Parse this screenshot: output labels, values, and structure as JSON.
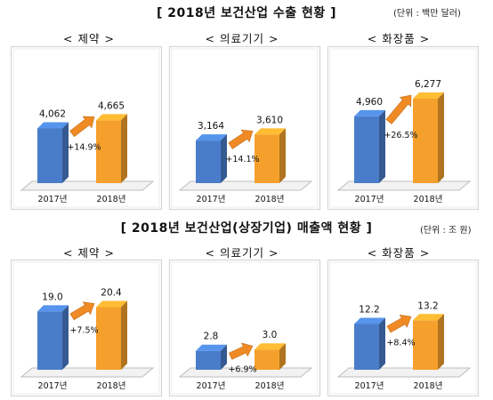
{
  "sections": [
    {
      "title": "[ 2018년 보건산업 수출 현황 ]",
      "unit": "(단위 : 백만 달러)"
    },
    {
      "title": "[ 2018년 보건산업(상장기업) 매출액 현황 ]",
      "unit": "(단위 : 조 원)"
    }
  ],
  "colors": {
    "bar2017": "#4a7dc9",
    "bar2018": "#f5a02c",
    "arrow": "#f08a24",
    "panel_border": "#d6d6d6",
    "floor": "#f2f2f2"
  },
  "chart_data": [
    {
      "type": "bar",
      "title": "< 제약 >",
      "categories": [
        "2017년",
        "2018년"
      ],
      "value_labels": [
        "4,062",
        "4,665"
      ],
      "values": [
        4062,
        4665
      ],
      "growth": "+14.9%",
      "ylim": [
        0,
        7000
      ]
    },
    {
      "type": "bar",
      "title": "< 의료기기 >",
      "categories": [
        "2017년",
        "2018년"
      ],
      "value_labels": [
        "3,164",
        "3,610"
      ],
      "values": [
        3164,
        3610
      ],
      "growth": "+14.1%",
      "ylim": [
        0,
        7000
      ]
    },
    {
      "type": "bar",
      "title": "< 화장품 >",
      "categories": [
        "2017년",
        "2018년"
      ],
      "value_labels": [
        "4,960",
        "6,277"
      ],
      "values": [
        4960,
        6277
      ],
      "growth": "+26.5%",
      "ylim": [
        0,
        7000
      ]
    },
    {
      "type": "bar",
      "title": "< 제약 >",
      "categories": [
        "2017년",
        "2018년"
      ],
      "value_labels": [
        "19.0",
        "20.4"
      ],
      "values": [
        19.0,
        20.4
      ],
      "growth": "+7.5%",
      "ylim": [
        0,
        22
      ]
    },
    {
      "type": "bar",
      "title": "< 의료기기 >",
      "categories": [
        "2017년",
        "2018년"
      ],
      "value_labels": [
        "2.8",
        "3.0"
      ],
      "values": [
        2.8,
        3.0
      ],
      "growth": "+6.9%",
      "ylim": [
        0,
        10
      ]
    },
    {
      "type": "bar",
      "title": "< 화장품 >",
      "categories": [
        "2017년",
        "2018년"
      ],
      "value_labels": [
        "12.2",
        "13.2"
      ],
      "values": [
        12.2,
        13.2
      ],
      "growth": "+8.4%",
      "ylim": [
        0,
        18
      ]
    }
  ]
}
